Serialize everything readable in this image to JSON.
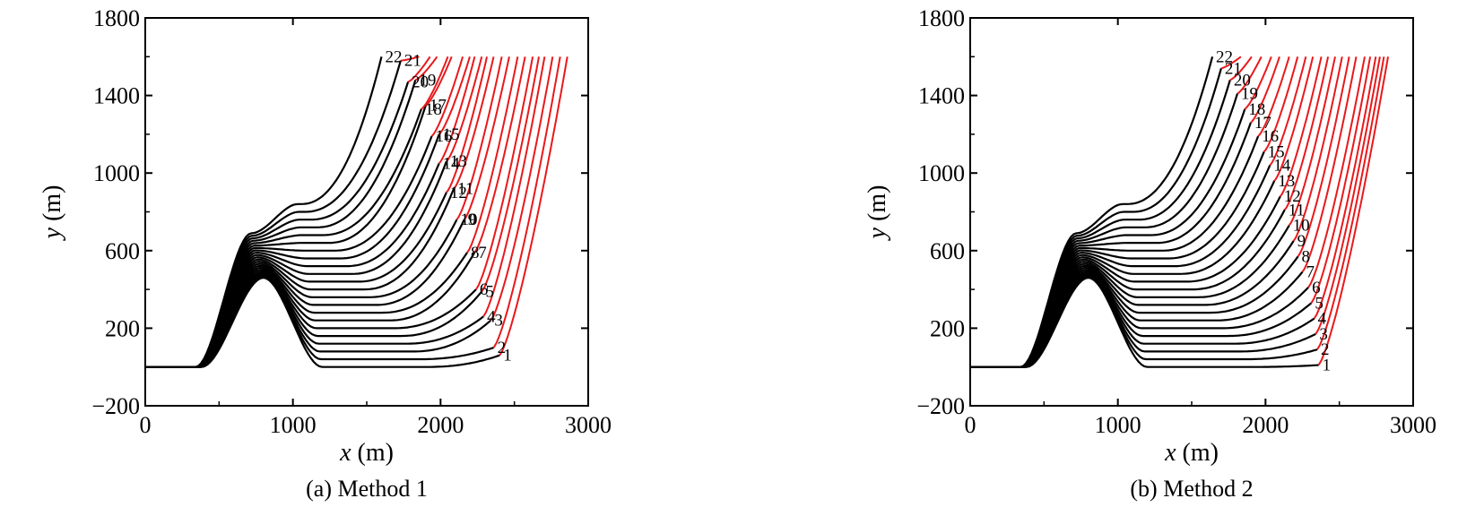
{
  "chart_data": [
    {
      "type": "line",
      "caption": "(a) Method 1",
      "xlabel_var": "x",
      "xlabel_unit": " (m)",
      "ylabel_var": "y",
      "ylabel_unit": " (m)",
      "xlim": [
        0,
        3000
      ],
      "ylim": [
        -200,
        1800
      ],
      "xticks": [
        0,
        1000,
        2000,
        3000
      ],
      "xtick_labels": [
        "0",
        "1000",
        "2000",
        "3000"
      ],
      "yticks": [
        -200,
        200,
        600,
        1000,
        1400,
        1800
      ],
      "ytick_labels": [
        "−200",
        "200",
        "600",
        "1000",
        "1400",
        "1800"
      ],
      "ground": {
        "bump_center_x": 800,
        "bump_halfwidth_x": 420
      },
      "black_color": "#000000",
      "red_color": "#e8191c",
      "series": [
        {
          "label": "1",
          "cruise_y": 0,
          "switch_x": 2300,
          "end_x": 2400,
          "end_y": 60
        },
        {
          "label": "2",
          "cruise_y": 40,
          "switch_x": 2250,
          "end_x": 2360,
          "end_y": 100
        },
        {
          "label": "3",
          "cruise_y": 80,
          "switch_x": 2210,
          "end_x": 2340,
          "end_y": 240
        },
        {
          "label": "4",
          "cruise_y": 120,
          "switch_x": 2160,
          "end_x": 2290,
          "end_y": 260
        },
        {
          "label": "5",
          "cruise_y": 160,
          "switch_x": 2130,
          "end_x": 2280,
          "end_y": 390
        },
        {
          "label": "6",
          "cruise_y": 200,
          "switch_x": 2080,
          "end_x": 2240,
          "end_y": 400
        },
        {
          "label": "7",
          "cruise_y": 240,
          "switch_x": 2050,
          "end_x": 2230,
          "end_y": 590
        },
        {
          "label": "8",
          "cruise_y": 280,
          "switch_x": 2000,
          "end_x": 2180,
          "end_y": 590
        },
        {
          "label": "9",
          "cruise_y": 320,
          "switch_x": 1960,
          "end_x": 2160,
          "end_y": 760
        },
        {
          "label": "10",
          "cruise_y": 360,
          "switch_x": 1920,
          "end_x": 2110,
          "end_y": 760
        },
        {
          "label": "11",
          "cruise_y": 400,
          "switch_x": 1880,
          "end_x": 2090,
          "end_y": 920
        },
        {
          "label": "12",
          "cruise_y": 440,
          "switch_x": 1840,
          "end_x": 2040,
          "end_y": 900
        },
        {
          "label": "13",
          "cruise_y": 480,
          "switch_x": 1800,
          "end_x": 2040,
          "end_y": 1060
        },
        {
          "label": "14",
          "cruise_y": 520,
          "switch_x": 1760,
          "end_x": 1990,
          "end_y": 1050
        },
        {
          "label": "15",
          "cruise_y": 560,
          "switch_x": 1720,
          "end_x": 1990,
          "end_y": 1200
        },
        {
          "label": "16",
          "cruise_y": 600,
          "switch_x": 1680,
          "end_x": 1940,
          "end_y": 1190
        },
        {
          "label": "17",
          "cruise_y": 640,
          "switch_x": 1640,
          "end_x": 1900,
          "end_y": 1350
        },
        {
          "label": "18",
          "cruise_y": 680,
          "switch_x": 1600,
          "end_x": 1870,
          "end_y": 1330
        },
        {
          "label": "19",
          "cruise_y": 720,
          "switch_x": 1560,
          "end_x": 1830,
          "end_y": 1480
        },
        {
          "label": "20",
          "cruise_y": 760,
          "switch_x": 1520,
          "end_x": 1780,
          "end_y": 1470
        },
        {
          "label": "21",
          "cruise_y": 800,
          "switch_x": 1480,
          "end_x": 1730,
          "end_y": 1580
        },
        {
          "label": "22",
          "cruise_y": 840,
          "switch_x": 1440,
          "end_x": 1600,
          "end_y": 1600
        }
      ]
    },
    {
      "type": "line",
      "caption": "(b) Method 2",
      "xlabel_var": "x",
      "xlabel_unit": " (m)",
      "ylabel_var": "y",
      "ylabel_unit": " (m)",
      "xlim": [
        0,
        3000
      ],
      "ylim": [
        -200,
        1800
      ],
      "xticks": [
        0,
        1000,
        2000,
        3000
      ],
      "xtick_labels": [
        "0",
        "1000",
        "2000",
        "3000"
      ],
      "yticks": [
        -200,
        200,
        600,
        1000,
        1400,
        1800
      ],
      "ytick_labels": [
        "−200",
        "200",
        "600",
        "1000",
        "1400",
        "1800"
      ],
      "ground": {
        "bump_center_x": 800,
        "bump_halfwidth_x": 420
      },
      "black_color": "#000000",
      "red_color": "#e8191c",
      "series": [
        {
          "label": "1",
          "cruise_y": 0,
          "switch_x": 2300,
          "end_x": 2360,
          "end_y": 10
        },
        {
          "label": "2",
          "cruise_y": 40,
          "switch_x": 2260,
          "end_x": 2350,
          "end_y": 90
        },
        {
          "label": "3",
          "cruise_y": 80,
          "switch_x": 2220,
          "end_x": 2340,
          "end_y": 170
        },
        {
          "label": "4",
          "cruise_y": 120,
          "switch_x": 2180,
          "end_x": 2330,
          "end_y": 250
        },
        {
          "label": "5",
          "cruise_y": 160,
          "switch_x": 2140,
          "end_x": 2310,
          "end_y": 330
        },
        {
          "label": "6",
          "cruise_y": 200,
          "switch_x": 2100,
          "end_x": 2290,
          "end_y": 410
        },
        {
          "label": "7",
          "cruise_y": 240,
          "switch_x": 2060,
          "end_x": 2250,
          "end_y": 490
        },
        {
          "label": "8",
          "cruise_y": 280,
          "switch_x": 2020,
          "end_x": 2220,
          "end_y": 570
        },
        {
          "label": "9",
          "cruise_y": 320,
          "switch_x": 1980,
          "end_x": 2190,
          "end_y": 650
        },
        {
          "label": "10",
          "cruise_y": 360,
          "switch_x": 1940,
          "end_x": 2160,
          "end_y": 730
        },
        {
          "label": "11",
          "cruise_y": 400,
          "switch_x": 1900,
          "end_x": 2130,
          "end_y": 810
        },
        {
          "label": "12",
          "cruise_y": 440,
          "switch_x": 1860,
          "end_x": 2100,
          "end_y": 880
        },
        {
          "label": "13",
          "cruise_y": 480,
          "switch_x": 1820,
          "end_x": 2060,
          "end_y": 960
        },
        {
          "label": "14",
          "cruise_y": 520,
          "switch_x": 1780,
          "end_x": 2030,
          "end_y": 1040
        },
        {
          "label": "15",
          "cruise_y": 560,
          "switch_x": 1740,
          "end_x": 1990,
          "end_y": 1110
        },
        {
          "label": "16",
          "cruise_y": 600,
          "switch_x": 1700,
          "end_x": 1950,
          "end_y": 1190
        },
        {
          "label": "17",
          "cruise_y": 640,
          "switch_x": 1660,
          "end_x": 1900,
          "end_y": 1260
        },
        {
          "label": "18",
          "cruise_y": 680,
          "switch_x": 1620,
          "end_x": 1860,
          "end_y": 1330
        },
        {
          "label": "19",
          "cruise_y": 720,
          "switch_x": 1580,
          "end_x": 1810,
          "end_y": 1410
        },
        {
          "label": "20",
          "cruise_y": 760,
          "switch_x": 1540,
          "end_x": 1760,
          "end_y": 1480
        },
        {
          "label": "21",
          "cruise_y": 800,
          "switch_x": 1500,
          "end_x": 1700,
          "end_y": 1540
        },
        {
          "label": "22",
          "cruise_y": 840,
          "switch_x": 1460,
          "end_x": 1640,
          "end_y": 1600
        }
      ]
    }
  ]
}
